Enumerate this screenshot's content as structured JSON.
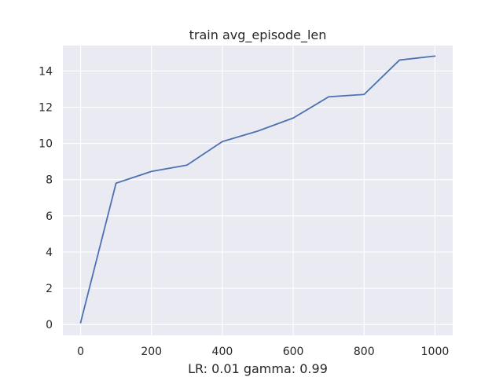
{
  "chart_data": {
    "type": "line",
    "title": "train avg_episode_len",
    "xlabel": "LR: 0.01 gamma: 0.99",
    "ylabel": "",
    "xlim": [
      -50,
      1050
    ],
    "ylim": [
      -0.6,
      15.4
    ],
    "xticks": [
      0,
      200,
      400,
      600,
      800,
      1000
    ],
    "yticks": [
      0,
      2,
      4,
      6,
      8,
      10,
      12,
      14
    ],
    "grid": true,
    "background": "#eaeaf2",
    "grid_color": "#ffffff",
    "series": [
      {
        "color": "#4c72b0",
        "x": [
          0,
          100,
          200,
          300,
          400,
          500,
          600,
          700,
          800,
          900,
          1000
        ],
        "y": [
          0.1,
          7.8,
          8.45,
          8.8,
          10.1,
          10.68,
          11.4,
          12.57,
          12.7,
          14.6,
          14.82
        ]
      }
    ]
  }
}
